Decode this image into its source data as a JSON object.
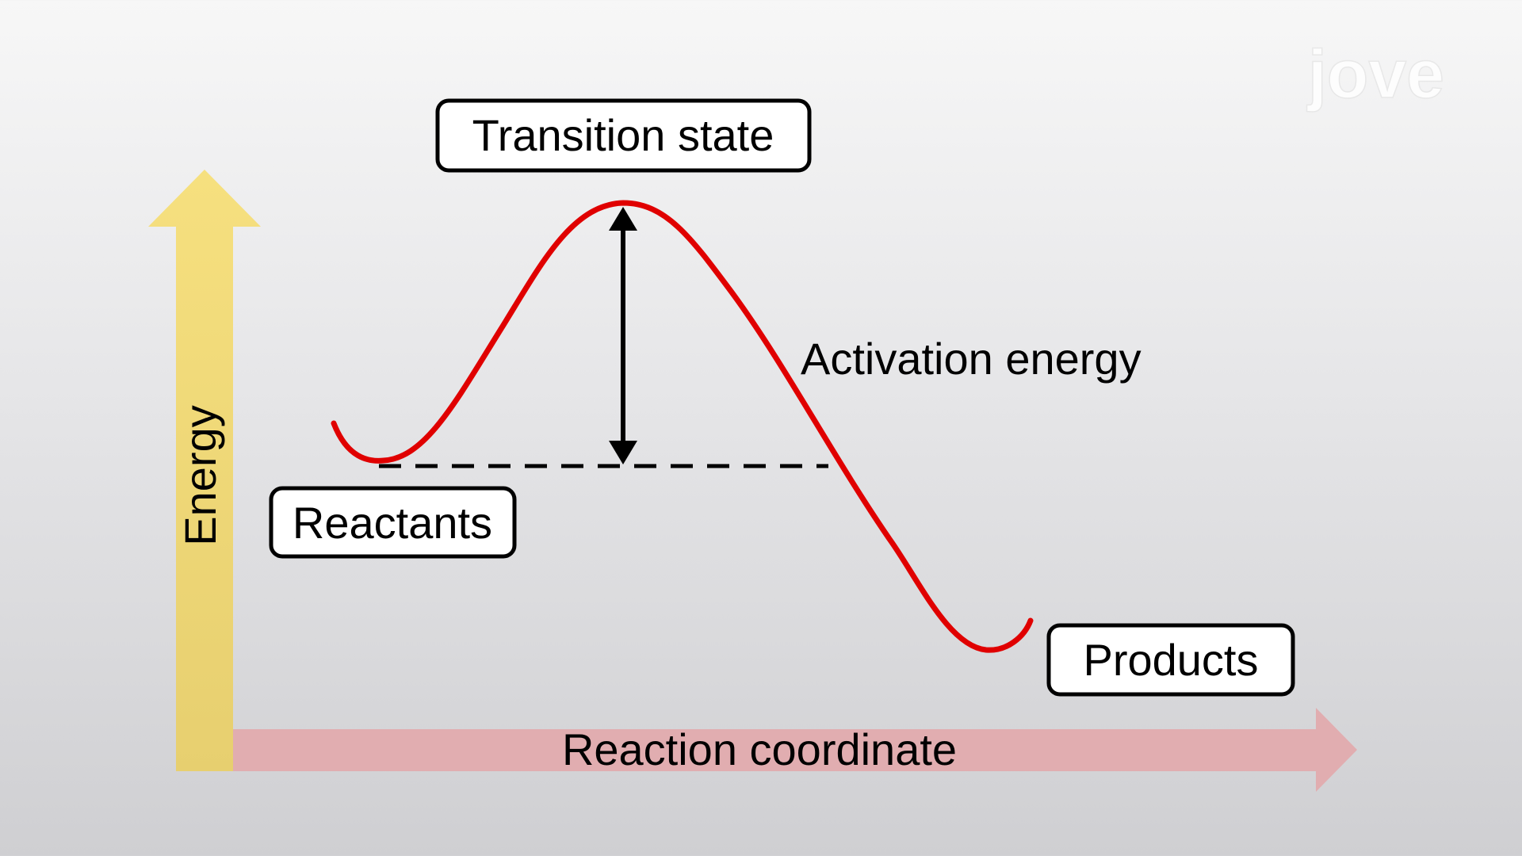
{
  "diagram": {
    "axes": {
      "y_label": "Energy",
      "x_label": "Reaction coordinate"
    },
    "labels": {
      "transition_state": "Transition state",
      "activation_energy": "Activation energy",
      "reactants": "Reactants",
      "products": "Products"
    }
  },
  "branding": {
    "watermark": "jove"
  },
  "colors": {
    "energy_axis": "#efd677",
    "reaction_axis": "#e1adb0",
    "curve": "#e00000",
    "ink": "#000000"
  }
}
